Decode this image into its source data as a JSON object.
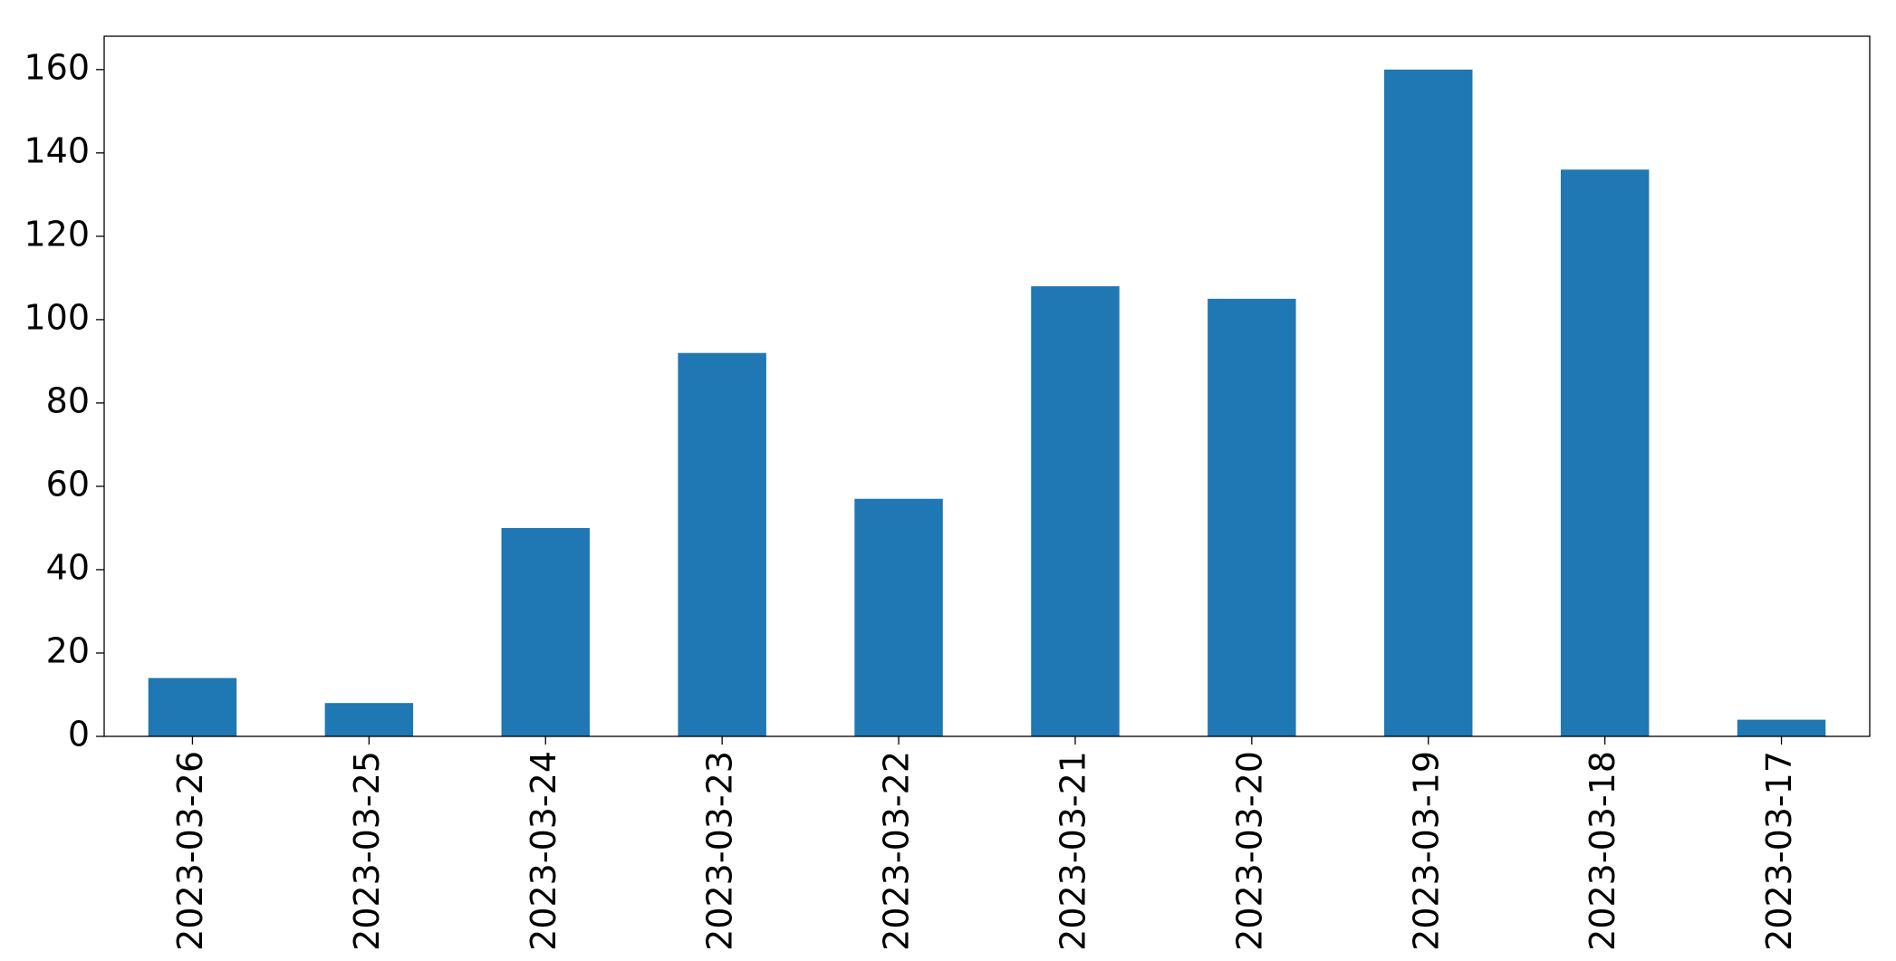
{
  "chart_data": {
    "type": "bar",
    "categories": [
      "2023-03-26",
      "2023-03-25",
      "2023-03-24",
      "2023-03-23",
      "2023-03-22",
      "2023-03-21",
      "2023-03-20",
      "2023-03-19",
      "2023-03-18",
      "2023-03-17"
    ],
    "values": [
      14,
      8,
      50,
      92,
      57,
      108,
      105,
      160,
      136,
      4
    ],
    "color": "#1f77b4",
    "ylim": [
      0,
      168
    ],
    "yticks": [
      0,
      20,
      40,
      60,
      80,
      100,
      120,
      140,
      160
    ],
    "grid": false
  }
}
